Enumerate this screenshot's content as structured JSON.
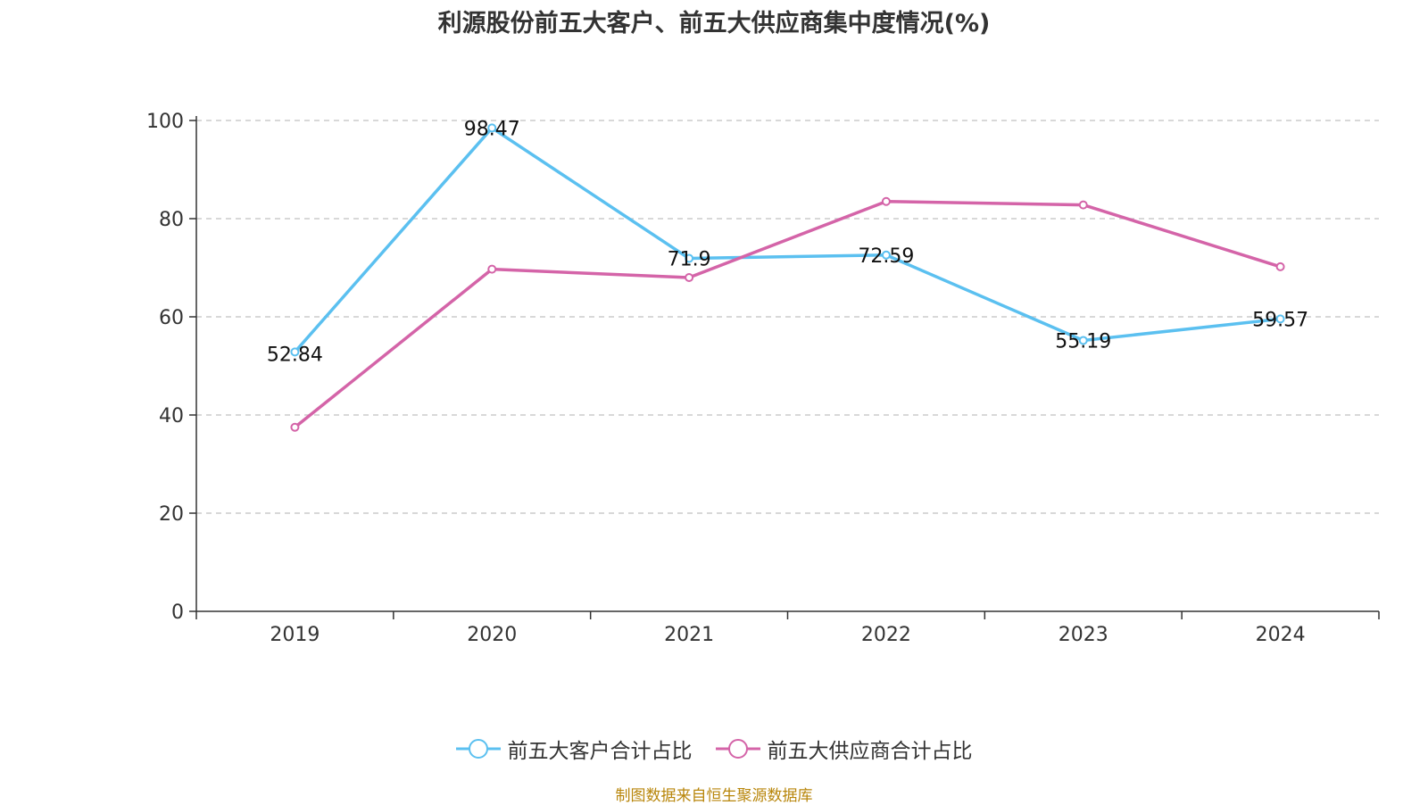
{
  "chart_data": {
    "type": "line",
    "title": "利源股份前五大客户、前五大供应商集中度情况(%)",
    "categories": [
      "2019",
      "2020",
      "2021",
      "2022",
      "2023",
      "2024"
    ],
    "ylim": [
      0,
      100
    ],
    "yticks": [
      0,
      20,
      40,
      60,
      80,
      100
    ],
    "grid": true,
    "legend_position": "bottom",
    "series": [
      {
        "name": "前五大客户合计占比",
        "color": "#5bc0f0",
        "values": [
          52.84,
          98.47,
          71.9,
          72.59,
          55.19,
          59.57
        ],
        "data_labels": [
          "52.84",
          "98.47",
          "71.9",
          "72.59",
          "55.19",
          "59.57"
        ]
      },
      {
        "name": "前五大供应商合计占比",
        "color": "#d464a8",
        "values": [
          37.5,
          69.7,
          68.0,
          83.5,
          82.8,
          70.2
        ],
        "data_labels": []
      }
    ]
  },
  "source": "制图数据来自恒生聚源数据库"
}
